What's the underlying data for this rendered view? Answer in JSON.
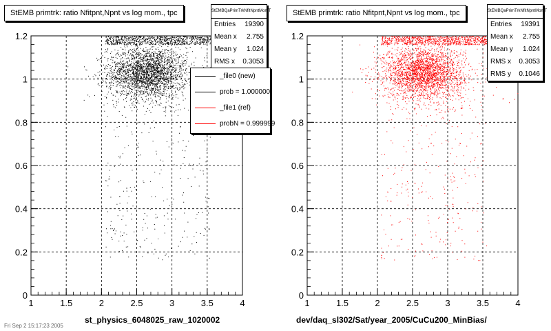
{
  "chart_data": [
    {
      "type": "scatter",
      "title": "StEMB primtrk: ratio Nfitpnt,Npnt vs log mom., tpc",
      "xlabel": "st_physics_6048025_raw_1020002",
      "ylabel": "",
      "xlim": [
        1,
        4
      ],
      "ylim": [
        0,
        1.2
      ],
      "xticks": [
        "1",
        "1.5",
        "2",
        "2.5",
        "3",
        "3.5",
        "4"
      ],
      "yticks": [
        "0",
        "0.2",
        "0.4",
        "0.6",
        "0.8",
        "1",
        "1.2"
      ],
      "grid": true,
      "color": "#000000",
      "stats": {
        "name": "StEMBQaPrimTrkNfitNpntMomT",
        "rows": [
          {
            "label": "Entries",
            "value": "19390"
          },
          {
            "label": "Mean x",
            "value": "2.755"
          },
          {
            "label": "Mean y",
            "value": "1.024"
          },
          {
            "label": "RMS x",
            "value": "0.3053"
          }
        ]
      },
      "legend": {
        "placement": "top-right",
        "entries": [
          {
            "label": "_file0 (new)",
            "color": "#000000"
          },
          {
            "label": "prob = 1.000000",
            "color": "#000000"
          },
          {
            "label": "_file1 (ref)",
            "color": "#ff0000"
          },
          {
            "label": "probN = 0.999999",
            "color": "#ff0000"
          }
        ]
      }
    },
    {
      "type": "scatter",
      "title": "StEMB primtrk: ratio Nfitpnt,Npnt vs log mom., tpc",
      "xlabel": "dev/daq_sl302/Sat/year_2005/CuCu200_MinBias/",
      "ylabel": "",
      "xlim": [
        1,
        4
      ],
      "ylim": [
        0,
        1.2
      ],
      "xticks": [
        "1",
        "1.5",
        "2",
        "2.5",
        "3",
        "3.5",
        "4"
      ],
      "yticks": [
        "0",
        "0.2",
        "0.4",
        "0.6",
        "0.8",
        "1",
        "1.2"
      ],
      "grid": true,
      "color": "#ff0000",
      "stats": {
        "name": "StEMBQaPrimTrkNfitNpntMomT",
        "rows": [
          {
            "label": "Entries",
            "value": "19391"
          },
          {
            "label": "Mean x",
            "value": "2.755"
          },
          {
            "label": "Mean y",
            "value": "1.024"
          },
          {
            "label": "RMS x",
            "value": "0.3053"
          },
          {
            "label": "RMS y",
            "value": "0.1046"
          }
        ]
      }
    }
  ],
  "footer": {
    "timestamp": "Fri Sep 2 15:17:23 2005"
  }
}
